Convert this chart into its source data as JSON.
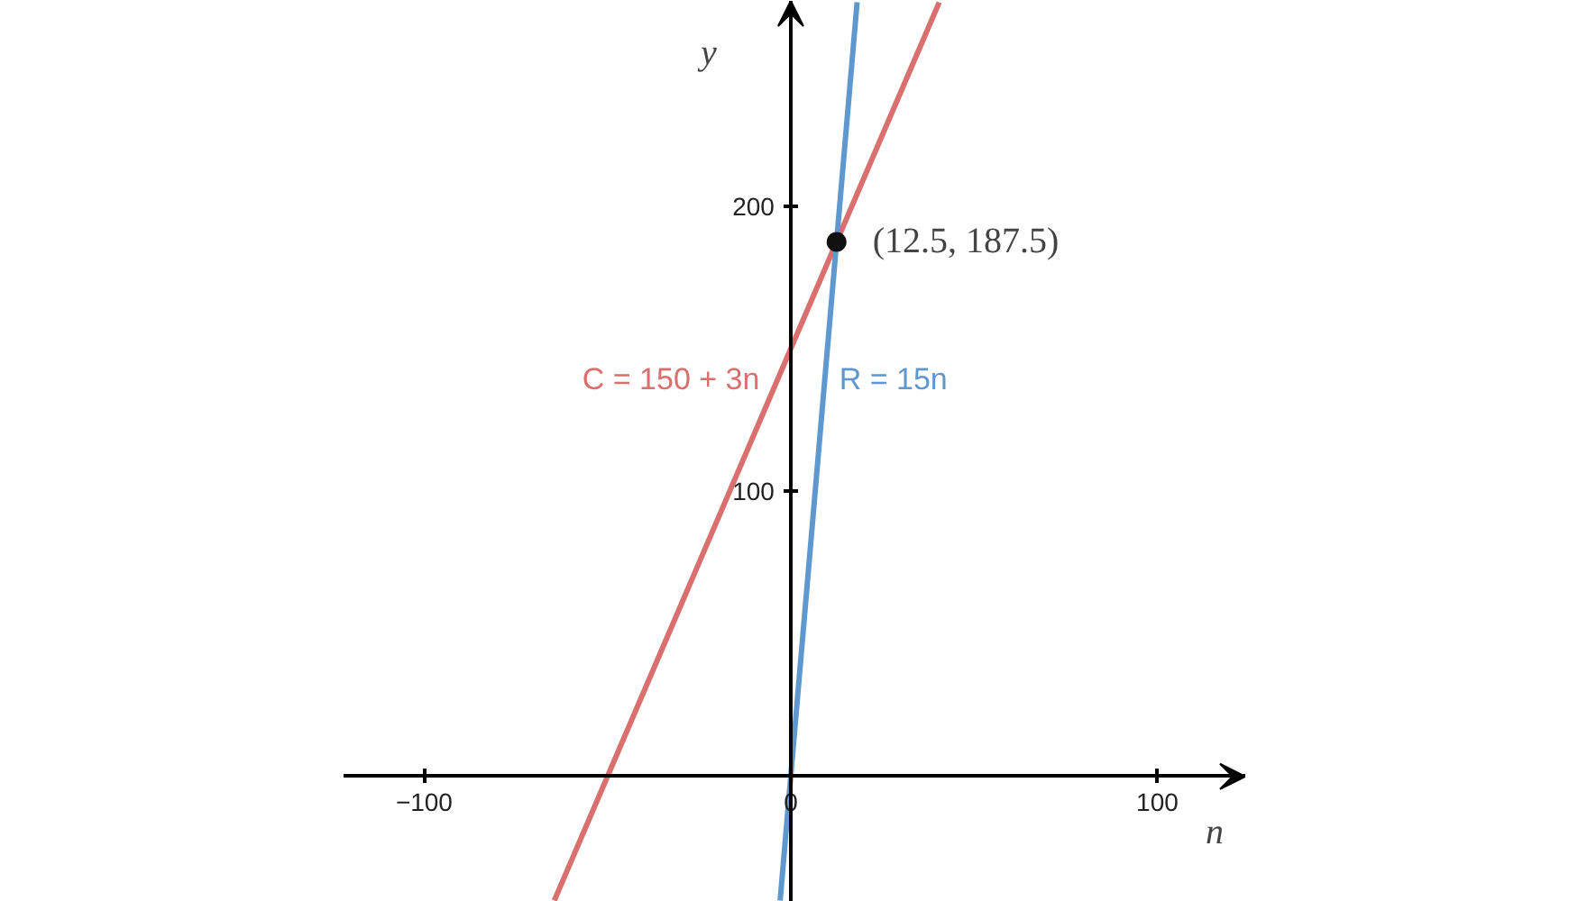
{
  "chart_data": {
    "type": "line",
    "xlabel": "n",
    "ylabel": "y",
    "xlim": [
      -122,
      124
    ],
    "ylim": [
      -44,
      272
    ],
    "xticks": [
      -100,
      0,
      100
    ],
    "yticks": [
      100,
      200
    ],
    "grid": false,
    "marker": "none",
    "line_style": "solid",
    "series": [
      {
        "name": "C = 150 + 3n",
        "color": "#d9706e",
        "x": [
          -64.5,
          40.5
        ],
        "values": [
          -43.5,
          271.5
        ]
      },
      {
        "name": "R = 15n",
        "color": "#5f97cf",
        "x": [
          -2.9,
          18.1
        ],
        "values": [
          -43.5,
          271.5
        ]
      },
      {
        "type": "scatter",
        "marker": "circle",
        "color": "#111111",
        "x": [
          12.5
        ],
        "values": [
          187.5
        ]
      }
    ],
    "annotations": [
      {
        "text": "(12.5, 187.5)",
        "x": 12.5,
        "y": 187.5
      }
    ]
  }
}
